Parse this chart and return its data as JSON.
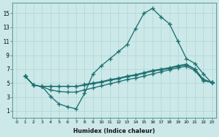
{
  "xlabel": "Humidex (Indice chaleur)",
  "ylabel": "",
  "bg_color": "#cce8e8",
  "grid_color": "#aed4d4",
  "line_color": "#1a7070",
  "marker": "+",
  "marker_size": 4,
  "line_width": 1.0,
  "xlim": [
    -0.5,
    23.5
  ],
  "ylim": [
    0,
    16.5
  ],
  "xticks": [
    0,
    1,
    2,
    3,
    4,
    5,
    6,
    7,
    8,
    9,
    10,
    11,
    12,
    13,
    14,
    15,
    16,
    17,
    18,
    19,
    20,
    21,
    22,
    23
  ],
  "yticks": [
    1,
    3,
    5,
    7,
    9,
    11,
    13,
    15
  ],
  "line_high_x": [
    1,
    2,
    3,
    4,
    5,
    6,
    7,
    8,
    9,
    10,
    11,
    12,
    13,
    14,
    15,
    16,
    17,
    18,
    19,
    20,
    21,
    22,
    23
  ],
  "line_high_y": [
    6.0,
    4.7,
    4.5,
    3.1,
    2.0,
    1.6,
    1.3,
    3.5,
    6.3,
    7.5,
    8.5,
    9.5,
    10.5,
    12.8,
    15.0,
    15.7,
    14.5,
    13.5,
    11.0,
    8.5,
    7.8,
    6.3,
    5.0
  ],
  "line_mid1_x": [
    1,
    2,
    3,
    4,
    5,
    6,
    7,
    8,
    9,
    10,
    11,
    12,
    13,
    14,
    15,
    16,
    17,
    18,
    19,
    20,
    21,
    22,
    23
  ],
  "line_mid1_y": [
    6.0,
    4.7,
    4.5,
    4.5,
    4.5,
    4.5,
    4.5,
    4.8,
    5.0,
    5.2,
    5.5,
    5.7,
    6.0,
    6.2,
    6.5,
    6.8,
    7.0,
    7.2,
    7.5,
    7.7,
    7.0,
    5.5,
    5.1
  ],
  "line_mid2_x": [
    1,
    2,
    3,
    4,
    5,
    6,
    7,
    8,
    9,
    10,
    11,
    12,
    13,
    14,
    15,
    16,
    17,
    18,
    19,
    20,
    21,
    22,
    23
  ],
  "line_mid2_y": [
    6.0,
    4.7,
    4.5,
    4.5,
    4.5,
    4.5,
    4.5,
    4.7,
    4.9,
    5.1,
    5.4,
    5.6,
    5.9,
    6.1,
    6.4,
    6.7,
    6.9,
    7.1,
    7.4,
    7.6,
    7.0,
    5.5,
    5.1
  ],
  "line_low_x": [
    1,
    2,
    3,
    4,
    5,
    6,
    7,
    8,
    9,
    10,
    11,
    12,
    13,
    14,
    15,
    16,
    17,
    18,
    19,
    20,
    21,
    22,
    23
  ],
  "line_low_y": [
    6.0,
    4.7,
    4.5,
    4.0,
    3.8,
    3.7,
    3.7,
    4.0,
    4.3,
    4.6,
    4.9,
    5.2,
    5.5,
    5.7,
    6.0,
    6.3,
    6.6,
    6.9,
    7.2,
    7.4,
    6.8,
    5.3,
    5.1
  ]
}
